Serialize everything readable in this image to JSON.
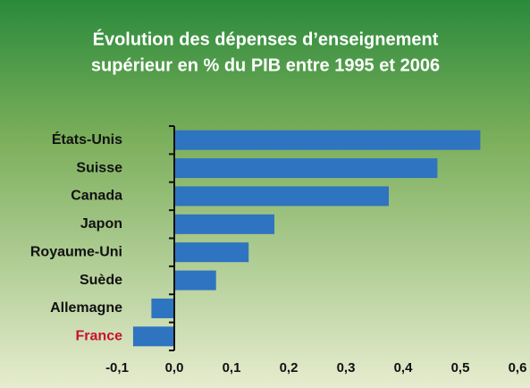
{
  "chart_data": {
    "type": "bar",
    "orientation": "horizontal",
    "title": [
      "Évolution des dépenses d’enseignement",
      "supérieur en % du PIB entre 1995 et 2006"
    ],
    "categories": [
      "États-Unis",
      "Suisse",
      "Canada",
      "Japon",
      "Royaume-Uni",
      "Suède",
      "Allemagne",
      "France"
    ],
    "values": [
      0.535,
      0.46,
      0.375,
      0.175,
      0.13,
      0.073,
      -0.04,
      -0.072
    ],
    "color": "#2f74c0",
    "category_colors": [
      "#111111",
      "#111111",
      "#111111",
      "#111111",
      "#111111",
      "#111111",
      "#111111",
      "#c8102e"
    ],
    "xlim": [
      -0.1,
      0.6
    ],
    "xticks": [
      {
        "value": -0.1,
        "label": "-0,1"
      },
      {
        "value": 0,
        "label": "0,0"
      },
      {
        "value": 0.1,
        "label": "0,1"
      },
      {
        "value": 0.2,
        "label": "0,2"
      },
      {
        "value": 0.3,
        "label": "0,3"
      },
      {
        "value": 0.4,
        "label": "0,4"
      },
      {
        "value": 0.5,
        "label": "0,5"
      },
      {
        "value": 0.6,
        "label": "0,6"
      }
    ],
    "grid": false
  }
}
